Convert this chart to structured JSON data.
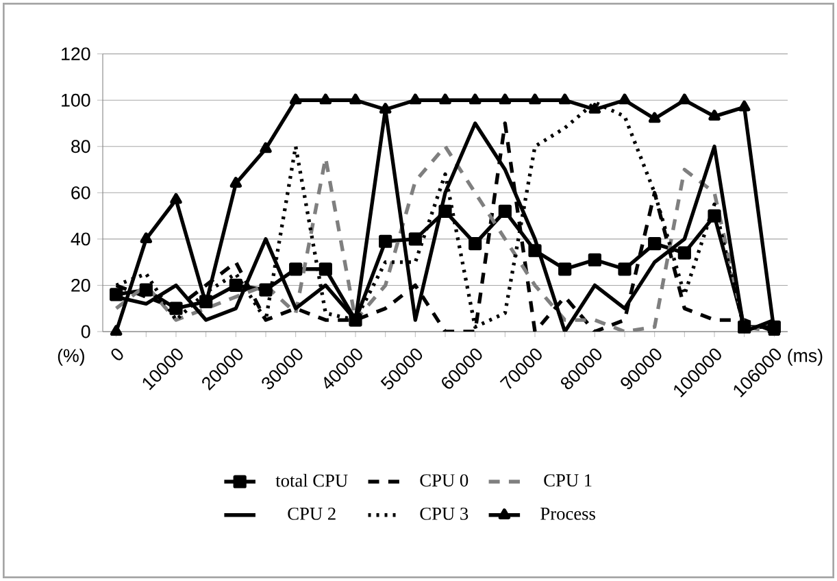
{
  "chart_data": {
    "type": "line",
    "xlabel": "(ms)",
    "ylabel": "(%)",
    "categories": [
      "0",
      null,
      "10000",
      null,
      "20000",
      null,
      "30000",
      null,
      "40000",
      null,
      "50000",
      null,
      "60000",
      null,
      "70000",
      null,
      "80000",
      null,
      "90000",
      null,
      "100000",
      null,
      "106000"
    ],
    "ylim": [
      0,
      120
    ],
    "yticks": [
      0,
      20,
      40,
      60,
      80,
      100,
      120
    ],
    "grid": "y",
    "legend": "bottom",
    "series": [
      {
        "name": "total CPU",
        "color": "#000000",
        "marker": "square",
        "line_style": "solid",
        "values": [
          16,
          18,
          10,
          13,
          20,
          18,
          27,
          27,
          5,
          39,
          40,
          52,
          38,
          52,
          35,
          27,
          31,
          27,
          38,
          34,
          50,
          2,
          2
        ]
      },
      {
        "name": "CPU 0",
        "color": "#000000",
        "marker": "none",
        "line_style": "dashed",
        "values": [
          20,
          15,
          10,
          20,
          30,
          5,
          10,
          5,
          5,
          10,
          20,
          0,
          0,
          90,
          0,
          15,
          0,
          5,
          60,
          10,
          5,
          5,
          0
        ]
      },
      {
        "name": "CPU 1",
        "color": "#7f7f7f",
        "marker": "none",
        "line_style": "dashed",
        "values": [
          10,
          20,
          5,
          10,
          15,
          20,
          8,
          75,
          5,
          20,
          65,
          80,
          60,
          40,
          20,
          5,
          5,
          0,
          2,
          70,
          60,
          2,
          0
        ]
      },
      {
        "name": "CPU 2",
        "color": "#000000",
        "marker": "none",
        "line_style": "solid",
        "values": [
          15,
          12,
          20,
          5,
          10,
          40,
          10,
          20,
          5,
          96,
          5,
          60,
          90,
          70,
          40,
          0,
          20,
          10,
          30,
          40,
          80,
          0,
          5
        ]
      },
      {
        "name": "CPU 3",
        "color": "#000000",
        "marker": "none",
        "line_style": "dotted",
        "values": [
          20,
          25,
          5,
          17,
          25,
          5,
          80,
          8,
          5,
          30,
          30,
          68,
          2,
          8,
          80,
          88,
          99,
          93,
          60,
          16,
          55,
          1,
          3
        ]
      },
      {
        "name": "Process",
        "color": "#000000",
        "marker": "triangle",
        "line_style": "solid",
        "values": [
          0,
          40,
          57,
          12,
          64,
          79,
          100,
          100,
          100,
          96,
          100,
          100,
          100,
          100,
          100,
          100,
          96,
          100,
          92,
          100,
          93,
          97,
          0
        ]
      }
    ]
  }
}
